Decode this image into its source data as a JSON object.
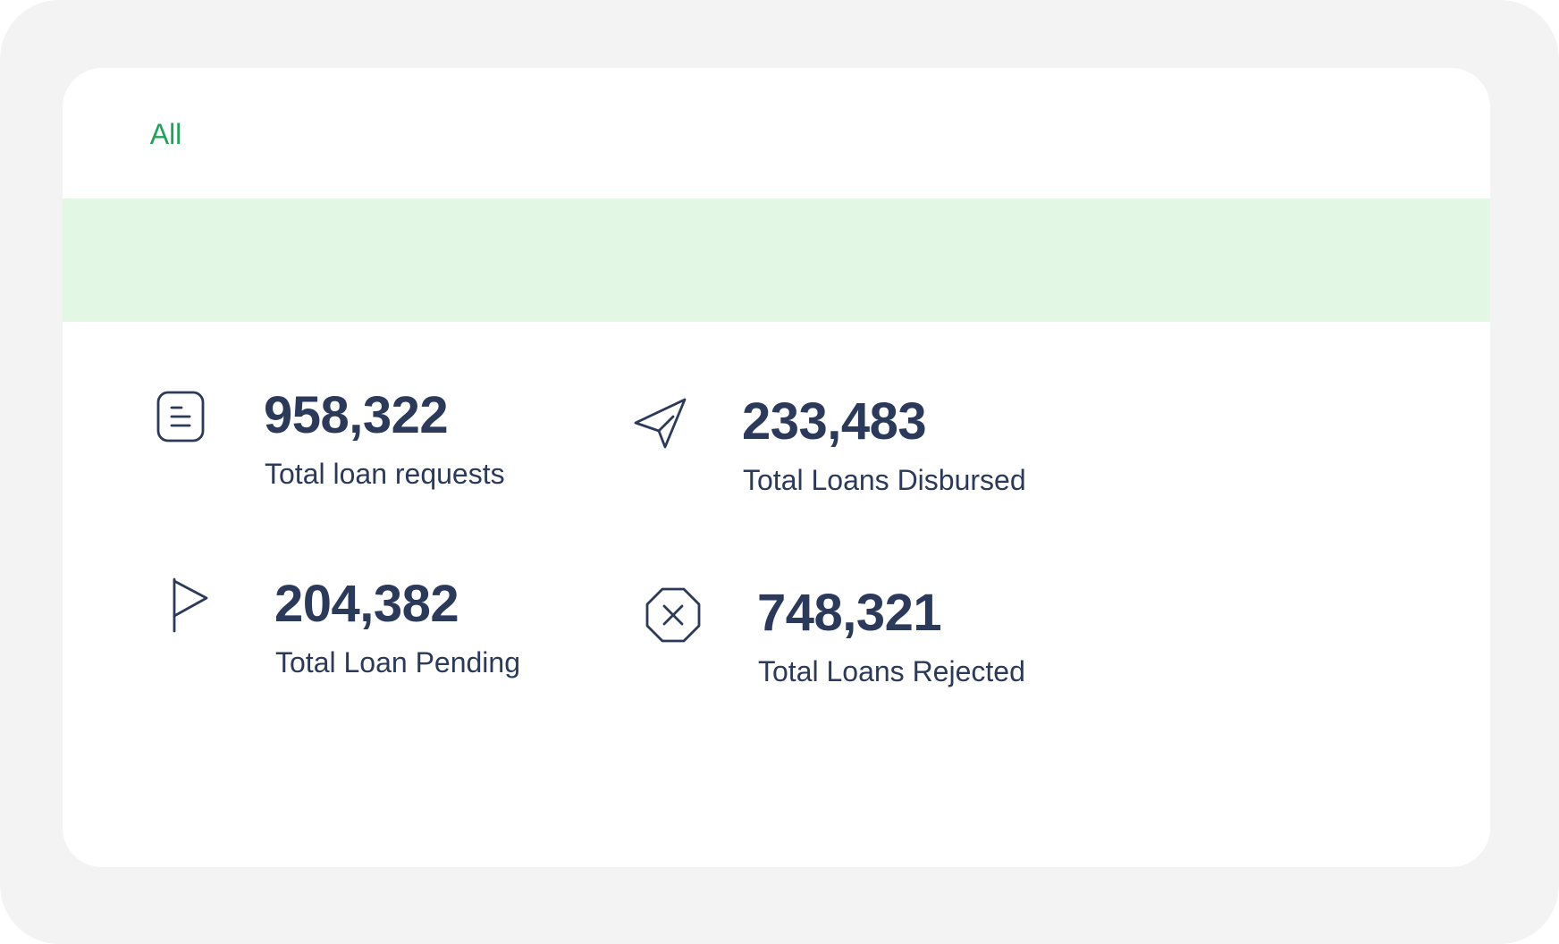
{
  "tabs": [
    {
      "label": "All",
      "active": true
    }
  ],
  "colors": {
    "accent": "#1fa35a",
    "banner": "#e2f8e5",
    "text": "#2b3a5a",
    "outer_background": "#f3f3f3",
    "card_background": "#ffffff"
  },
  "stats": [
    {
      "value": "958,322",
      "label": "Total loan requests",
      "icon": "document-lines-icon"
    },
    {
      "value": "233,483",
      "label": "Total Loans Disbursed",
      "icon": "paper-plane-icon"
    },
    {
      "value": "204,382",
      "label": "Total Loan Pending",
      "icon": "flag-icon"
    },
    {
      "value": "748,321",
      "label": "Total Loans Rejected",
      "icon": "octagon-x-icon"
    }
  ]
}
